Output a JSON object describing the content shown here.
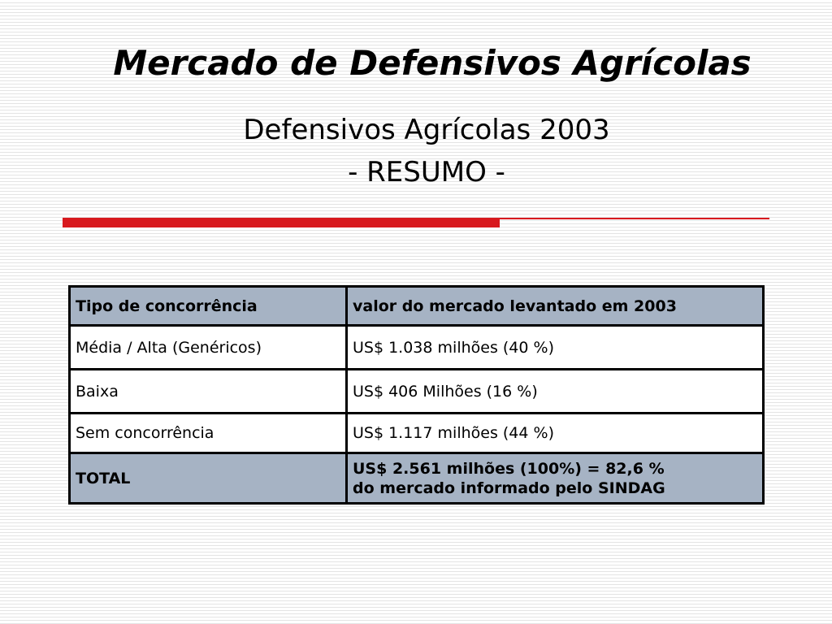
{
  "slide": {
    "title": "Mercado de Defensivos Agrícolas",
    "subtitle_line1": "Defensivos Agrícolas 2003",
    "subtitle_line2": "- RESUMO -",
    "accent_color": "#d8191e",
    "header_fill_color": "#a6b3c4"
  },
  "table": {
    "headers": [
      "Tipo de concorrência",
      "valor do mercado levantado em 2003"
    ],
    "rows": [
      [
        "Média / Alta (Genéricos)",
        "US$ 1.038 milhões (40 %)"
      ],
      [
        "Baixa",
        "US$ 406 Milhões (16 %)"
      ],
      [
        "Sem concorrência",
        "US$ 1.117 milhões (44 %)"
      ]
    ],
    "total": {
      "label": "TOTAL",
      "value_line1": "US$ 2.561 milhões (100%) = 82,6 %",
      "value_line2": "do mercado informado pelo SINDAG"
    }
  }
}
